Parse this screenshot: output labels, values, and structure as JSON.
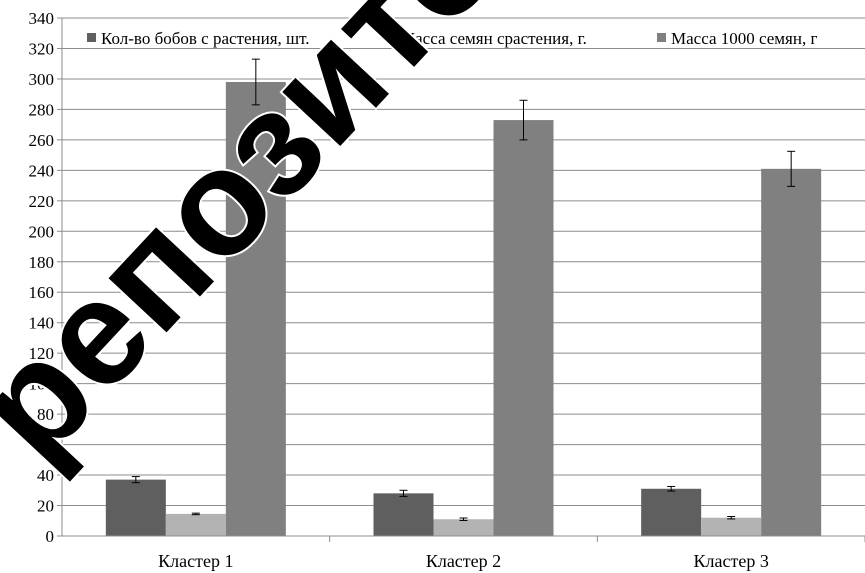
{
  "chart_data": {
    "type": "bar",
    "title": "",
    "xlabel": "",
    "ylabel": "",
    "ylim": [
      0,
      340
    ],
    "yticks": [
      0,
      20,
      40,
      60,
      80,
      100,
      120,
      140,
      160,
      180,
      200,
      220,
      240,
      260,
      280,
      300,
      320,
      340
    ],
    "grid": "horizontal",
    "legend_position": "top",
    "categories": [
      "Кластер 1",
      "Кластер 2",
      "Кластер 3"
    ],
    "series": [
      {
        "name": "Кол-во бобов с растения, шт.",
        "color": "#5f5f5f",
        "values": [
          37,
          28,
          31
        ],
        "errors": [
          2,
          2,
          1.5
        ]
      },
      {
        "name": "Масса семян срастения, г.",
        "color": "#b3b3b3",
        "values": [
          14.5,
          11,
          12
        ],
        "errors": [
          0.5,
          0.8,
          0.8
        ]
      },
      {
        "name": "Масса 1000 семян, г",
        "color": "#808080",
        "values": [
          298,
          273,
          241
        ],
        "errors": [
          15,
          13,
          11.5
        ]
      }
    ]
  },
  "watermark": {
    "text": "репозиторий",
    "color": "#000000"
  }
}
